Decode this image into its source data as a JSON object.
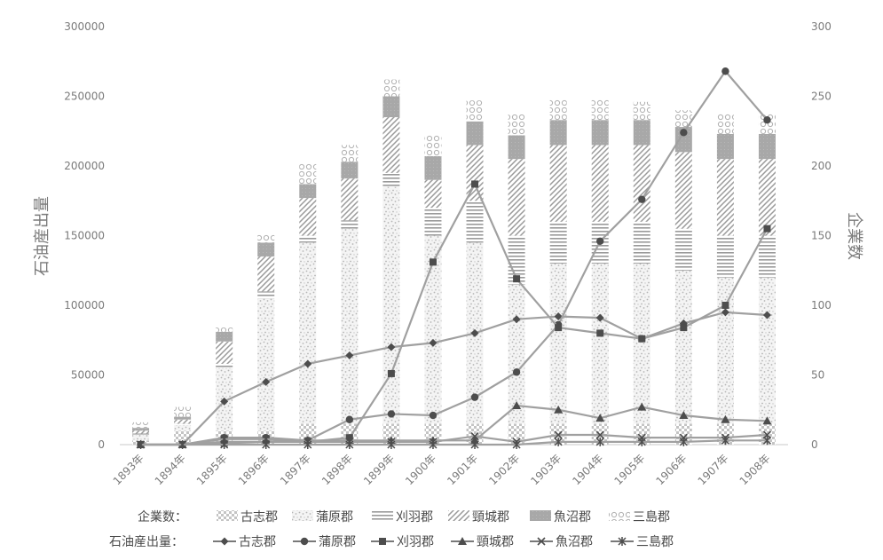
{
  "chart_data": {
    "type": "bar",
    "subtype": "stacked bar + line (dual axis)",
    "categories": [
      "1893年",
      "1894年",
      "1895年",
      "1896年",
      "1897年",
      "1898年",
      "1899年",
      "1900年",
      "1901年",
      "1902年",
      "1903年",
      "1904年",
      "1905年",
      "1906年",
      "1907年",
      "1908年"
    ],
    "ylabel": "石油産出量",
    "y2label": "企業数",
    "ylim": [
      0,
      300000
    ],
    "y2lim": [
      0,
      300
    ],
    "yticks": [
      "0",
      "50000",
      "100000",
      "150000",
      "200000",
      "250000",
      "300000"
    ],
    "y2ticks": [
      "0",
      "50",
      "100",
      "150",
      "200",
      "250",
      "300"
    ],
    "grid": false,
    "legend_position": "bottom",
    "legend_bar_title": "企業数：",
    "legend_line_title": "石油産出量：",
    "bar_series": [
      {
        "name": "古志郡",
        "pattern": "small-dots",
        "values": [
          3000,
          10000,
          10000,
          10000,
          15000,
          15000,
          15000,
          15000,
          15000,
          15000,
          15000,
          15000,
          15000,
          15000,
          15000,
          15000
        ]
      },
      {
        "name": "蒲原郡",
        "pattern": "speckle",
        "values": [
          4000,
          4000,
          45000,
          95000,
          130000,
          140000,
          170000,
          135000,
          130000,
          100000,
          115000,
          115000,
          115000,
          110000,
          105000,
          105000
        ]
      },
      {
        "name": "刈羽郡",
        "pattern": "horizontal-lines",
        "values": [
          1000,
          1000,
          3000,
          5000,
          5000,
          6000,
          10000,
          20000,
          30000,
          35000,
          30000,
          30000,
          30000,
          30000,
          30000,
          30000
        ]
      },
      {
        "name": "頸城郡",
        "pattern": "diagonal-lines",
        "values": [
          2000,
          3000,
          16000,
          25000,
          27000,
          30000,
          40000,
          20000,
          40000,
          55000,
          55000,
          55000,
          55000,
          55000,
          55000,
          55000
        ]
      },
      {
        "name": "魚沼郡",
        "pattern": "solid-gray",
        "values": [
          2000,
          2000,
          7000,
          10000,
          10000,
          12000,
          15000,
          17000,
          17000,
          17000,
          18000,
          18000,
          18000,
          18000,
          18000,
          18000
        ]
      },
      {
        "name": "三島郡",
        "pattern": "loops",
        "values": [
          4000,
          7000,
          3000,
          6000,
          15000,
          12000,
          12000,
          15000,
          15000,
          15000,
          15000,
          15000,
          13000,
          12000,
          15000,
          15000
        ]
      }
    ],
    "line_series": [
      {
        "name": "古志郡",
        "marker": "diamond",
        "values": [
          0,
          0,
          31,
          45,
          58,
          64,
          70,
          73,
          80,
          90,
          92,
          91,
          76,
          87,
          95,
          93
        ]
      },
      {
        "name": "蒲原郡",
        "marker": "circle",
        "values": [
          0,
          0,
          5,
          5,
          3,
          18,
          22,
          21,
          34,
          52,
          86,
          146,
          176,
          224,
          268,
          233
        ]
      },
      {
        "name": "刈羽郡",
        "marker": "square",
        "values": [
          0,
          0,
          1,
          2,
          2,
          5,
          51,
          131,
          187,
          119,
          84,
          80,
          76,
          84,
          100,
          155
        ]
      },
      {
        "name": "頸城郡",
        "marker": "triangle",
        "values": [
          0,
          0,
          2,
          2,
          3,
          3,
          3,
          3,
          3,
          28,
          25,
          19,
          27,
          21,
          18,
          17
        ]
      },
      {
        "name": "魚沼郡",
        "marker": "x",
        "values": [
          0,
          0,
          4,
          4,
          2,
          2,
          2,
          2,
          6,
          2,
          7,
          7,
          5,
          5,
          5,
          7
        ]
      },
      {
        "name": "三島郡",
        "marker": "asterisk",
        "values": [
          0,
          0,
          0,
          0,
          0,
          0,
          0,
          0,
          0,
          0,
          2,
          2,
          2,
          2,
          3,
          3
        ]
      }
    ]
  }
}
